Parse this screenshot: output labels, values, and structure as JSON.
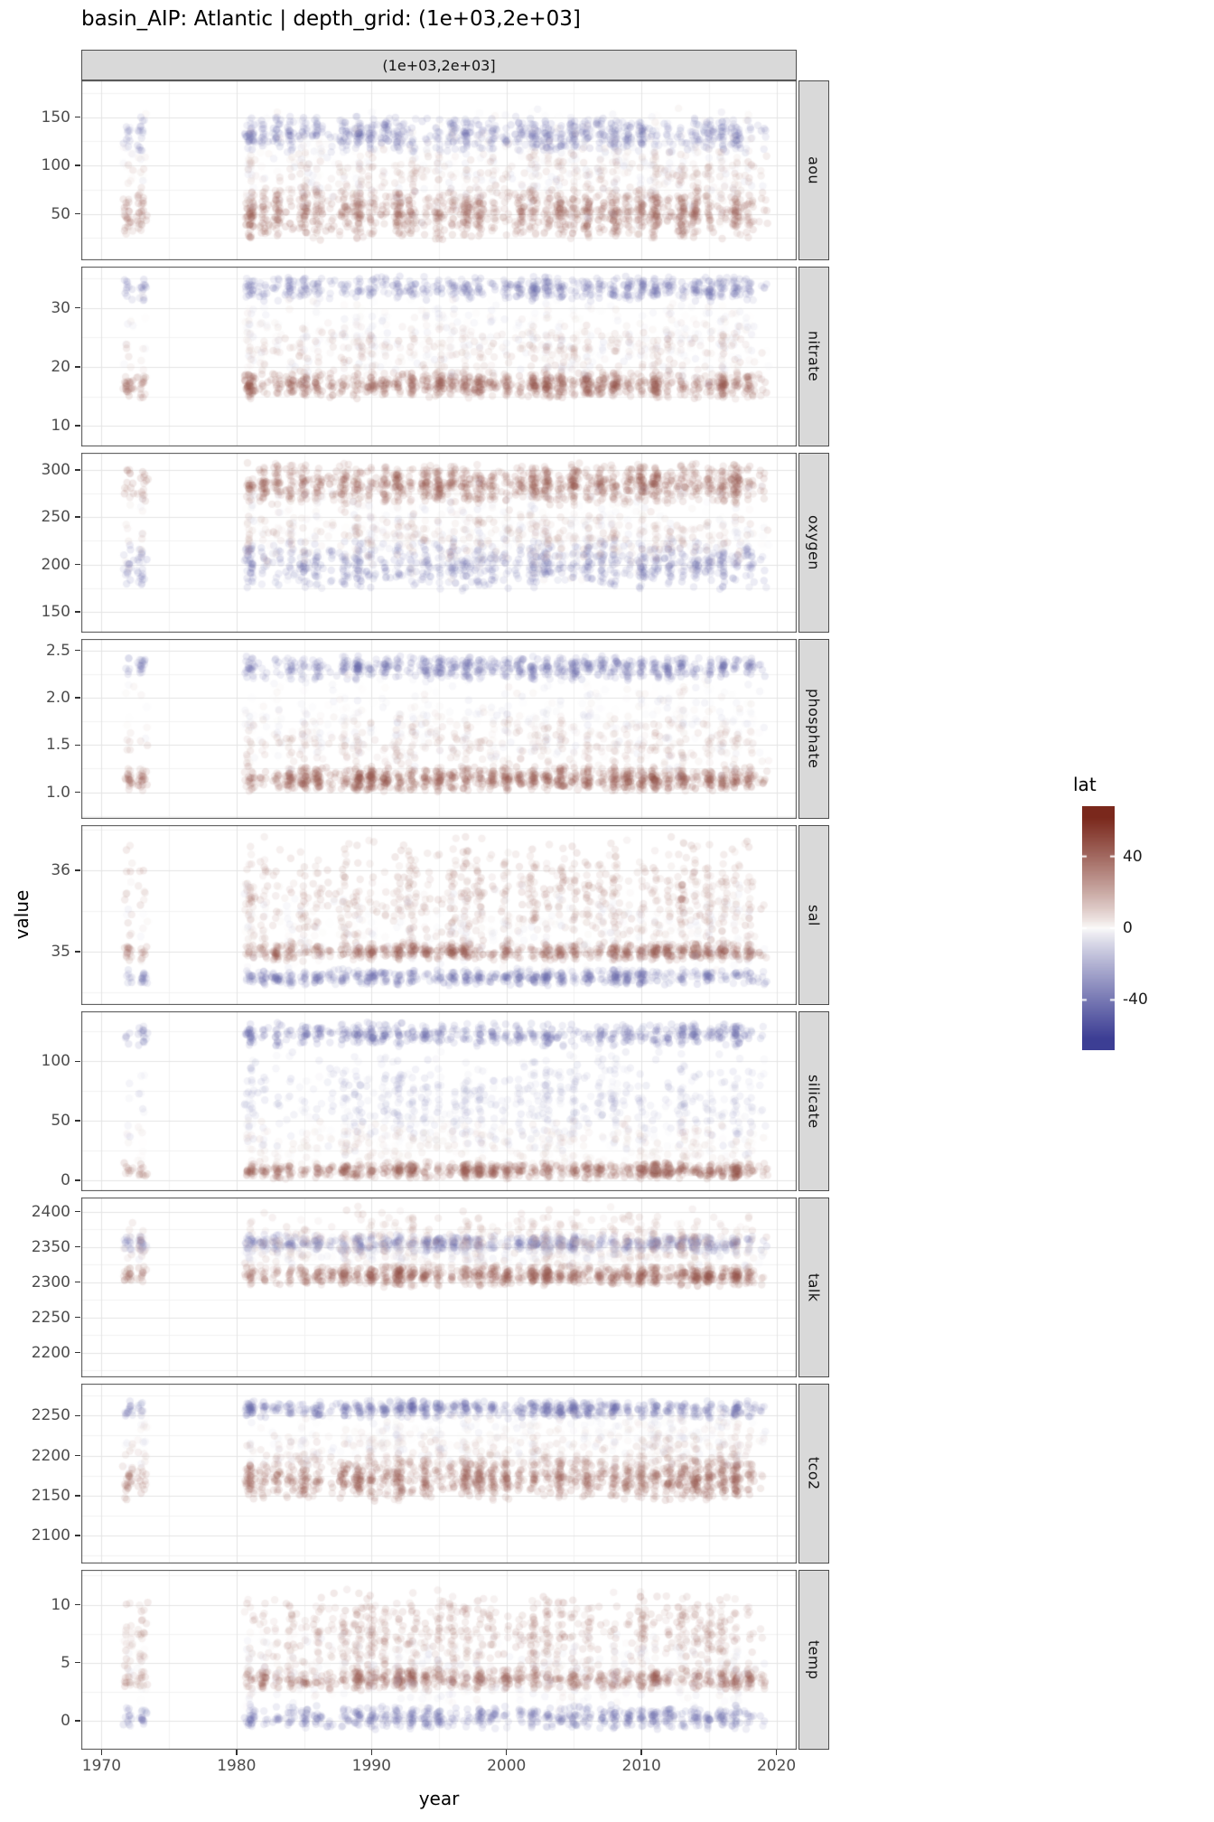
{
  "title": "basin_AIP: Atlantic | depth_grid: (1e+03,2e+03]",
  "facet_top_label": "(1e+03,2e+03]",
  "axis": {
    "x_label": "year",
    "y_label": "value",
    "x_ticks": [
      1970,
      1980,
      1990,
      2000,
      2010,
      2020
    ]
  },
  "legend": {
    "title": "lat",
    "ticks": [
      40,
      0,
      -40
    ],
    "range": [
      -68,
      68
    ],
    "color_high": "#7a281c",
    "color_mid": "#fcfbfa",
    "color_low": "#3c3e94"
  },
  "style": {
    "strip_bg": "#d9d9d9",
    "panel_border": "#4d4d4d",
    "grid_major": "#e4e4e4",
    "grid_minor": "#f2f2f2",
    "tick_color": "#333333",
    "label_color": "#4d4d4d"
  },
  "chart_data": {
    "type": "scatter",
    "x_range": [
      1968.5,
      2021.5
    ],
    "points_scale": 110,
    "alpha": 0.12,
    "point_radius": 4.2,
    "color_variable": "lat",
    "campaigns": [
      {
        "year": 1972,
        "w": 0.35
      },
      {
        "year": 1973,
        "w": 0.45
      },
      {
        "year": 1981,
        "w": 0.85
      },
      {
        "year": 1982,
        "w": 0.5
      },
      {
        "year": 1983,
        "w": 0.55
      },
      {
        "year": 1984,
        "w": 0.5
      },
      {
        "year": 1985,
        "w": 0.6
      },
      {
        "year": 1986,
        "w": 0.55
      },
      {
        "year": 1987,
        "w": 0.25
      },
      {
        "year": 1988,
        "w": 0.6
      },
      {
        "year": 1989,
        "w": 0.8
      },
      {
        "year": 1990,
        "w": 0.75
      },
      {
        "year": 1991,
        "w": 0.55
      },
      {
        "year": 1992,
        "w": 0.8
      },
      {
        "year": 1993,
        "w": 0.7
      },
      {
        "year": 1994,
        "w": 0.6
      },
      {
        "year": 1995,
        "w": 0.7
      },
      {
        "year": 1996,
        "w": 0.6
      },
      {
        "year": 1997,
        "w": 0.8
      },
      {
        "year": 1998,
        "w": 0.7
      },
      {
        "year": 1999,
        "w": 0.5
      },
      {
        "year": 2000,
        "w": 0.55
      },
      {
        "year": 2001,
        "w": 0.5
      },
      {
        "year": 2002,
        "w": 0.7
      },
      {
        "year": 2003,
        "w": 0.8
      },
      {
        "year": 2004,
        "w": 0.7
      },
      {
        "year": 2005,
        "w": 0.8
      },
      {
        "year": 2006,
        "w": 0.7
      },
      {
        "year": 2007,
        "w": 0.6
      },
      {
        "year": 2008,
        "w": 0.8
      },
      {
        "year": 2009,
        "w": 0.6
      },
      {
        "year": 2010,
        "w": 0.8
      },
      {
        "year": 2011,
        "w": 0.8
      },
      {
        "year": 2012,
        "w": 0.7
      },
      {
        "year": 2013,
        "w": 0.8
      },
      {
        "year": 2014,
        "w": 0.75
      },
      {
        "year": 2015,
        "w": 0.6
      },
      {
        "year": 2016,
        "w": 0.7
      },
      {
        "year": 2017,
        "w": 0.85
      },
      {
        "year": 2018,
        "w": 0.5
      },
      {
        "year": 2019,
        "w": 0.15
      }
    ],
    "facets": [
      {
        "name": "aou",
        "y_ticks": [
          50,
          100,
          150
        ],
        "y_tick_labels": [
          "50",
          "100",
          "150"
        ],
        "y_range": [
          2,
          188
        ],
        "bands": [
          {
            "lat": [
              35,
              55
            ],
            "y": [
              22,
              78
            ],
            "w": 0.42
          },
          {
            "lat": [
              -55,
              -35
            ],
            "y": [
              112,
              152
            ],
            "w": 0.27
          },
          {
            "lat": [
              -25,
              20
            ],
            "y": [
              35,
              165
            ],
            "w": 0.21
          },
          {
            "lat": [
              20,
              40
            ],
            "y": [
              60,
              120
            ],
            "w": 0.1
          }
        ]
      },
      {
        "name": "nitrate",
        "y_ticks": [
          10,
          20,
          30
        ],
        "y_tick_labels": [
          "10",
          "20",
          "30"
        ],
        "y_range": [
          6.5,
          37
        ],
        "bands": [
          {
            "lat": [
              35,
              55
            ],
            "y": [
              14.5,
              19.5
            ],
            "w": 0.42
          },
          {
            "lat": [
              -55,
              -35
            ],
            "y": [
              31,
              35.5
            ],
            "w": 0.27
          },
          {
            "lat": [
              -25,
              20
            ],
            "y": [
              16,
              33
            ],
            "w": 0.21
          },
          {
            "lat": [
              15,
              40
            ],
            "y": [
              18,
              28
            ],
            "w": 0.1
          }
        ]
      },
      {
        "name": "oxygen",
        "y_ticks": [
          150,
          200,
          250,
          300
        ],
        "y_tick_labels": [
          "150",
          "200",
          "250",
          "300"
        ],
        "y_range": [
          128,
          318
        ],
        "bands": [
          {
            "lat": [
              35,
              55
            ],
            "y": [
              262,
              308
            ],
            "w": 0.42
          },
          {
            "lat": [
              -55,
              -35
            ],
            "y": [
              172,
              228
            ],
            "w": 0.27
          },
          {
            "lat": [
              -25,
              20
            ],
            "y": [
              180,
              290
            ],
            "w": 0.21
          },
          {
            "lat": [
              15,
              40
            ],
            "y": [
              200,
              260
            ],
            "w": 0.1
          }
        ]
      },
      {
        "name": "phosphate",
        "y_ticks": [
          1.0,
          1.5,
          2.0,
          2.5
        ],
        "y_tick_labels": [
          "1.0",
          "1.5",
          "2.0",
          "2.5"
        ],
        "y_range": [
          0.72,
          2.62
        ],
        "bands": [
          {
            "lat": [
              35,
              55
            ],
            "y": [
              1.0,
              1.28
            ],
            "w": 0.42
          },
          {
            "lat": [
              -55,
              -35
            ],
            "y": [
              2.18,
              2.45
            ],
            "w": 0.27
          },
          {
            "lat": [
              -25,
              20
            ],
            "y": [
              1.15,
              2.3
            ],
            "w": 0.21
          },
          {
            "lat": [
              15,
              40
            ],
            "y": [
              1.2,
              1.8
            ],
            "w": 0.1
          }
        ]
      },
      {
        "name": "sal",
        "y_ticks": [
          35,
          36
        ],
        "y_tick_labels": [
          "35",
          "36"
        ],
        "y_range": [
          34.35,
          36.55
        ],
        "bands": [
          {
            "lat": [
              35,
              55
            ],
            "y": [
              34.88,
              35.12
            ],
            "w": 0.3
          },
          {
            "lat": [
              20,
              50
            ],
            "y": [
              34.95,
              36.45
            ],
            "w": 0.3
          },
          {
            "lat": [
              -55,
              -35
            ],
            "y": [
              34.58,
              34.8
            ],
            "w": 0.25
          },
          {
            "lat": [
              -20,
              15
            ],
            "y": [
              34.7,
              35.9
            ],
            "w": 0.15
          }
        ]
      },
      {
        "name": "silicate",
        "y_ticks": [
          0,
          50,
          100
        ],
        "y_tick_labels": [
          "0",
          "50",
          "100"
        ],
        "y_range": [
          -9,
          142
        ],
        "bands": [
          {
            "lat": [
              35,
              55
            ],
            "y": [
              1,
              16
            ],
            "w": 0.38
          },
          {
            "lat": [
              -55,
              -38
            ],
            "y": [
              112,
              133
            ],
            "w": 0.22
          },
          {
            "lat": [
              -38,
              -8
            ],
            "y": [
              20,
              112
            ],
            "w": 0.25
          },
          {
            "lat": [
              -5,
              25
            ],
            "y": [
              3,
              55
            ],
            "w": 0.15
          }
        ]
      },
      {
        "name": "talk",
        "y_ticks": [
          2200,
          2250,
          2300,
          2350,
          2400
        ],
        "y_tick_labels": [
          "2200",
          "2250",
          "2300",
          "2350",
          "2400"
        ],
        "y_range": [
          2165,
          2420
        ],
        "bands": [
          {
            "lat": [
              35,
              55
            ],
            "y": [
              2293,
              2325
            ],
            "w": 0.4
          },
          {
            "lat": [
              -55,
              -35
            ],
            "y": [
              2342,
              2368
            ],
            "w": 0.26
          },
          {
            "lat": [
              10,
              40
            ],
            "y": [
              2300,
              2408
            ],
            "w": 0.22
          },
          {
            "lat": [
              -25,
              5
            ],
            "y": [
              2320,
              2370
            ],
            "w": 0.12
          }
        ]
      },
      {
        "name": "tco2",
        "y_ticks": [
          2100,
          2150,
          2200,
          2250
        ],
        "y_tick_labels": [
          "2100",
          "2150",
          "2200",
          "2250"
        ],
        "y_range": [
          2065,
          2290
        ],
        "bands": [
          {
            "lat": [
              35,
              55
            ],
            "y": [
              2142,
              2200
            ],
            "w": 0.42
          },
          {
            "lat": [
              -55,
              -35
            ],
            "y": [
              2246,
              2270
            ],
            "w": 0.27
          },
          {
            "lat": [
              -20,
              20
            ],
            "y": [
              2180,
              2258
            ],
            "w": 0.21
          },
          {
            "lat": [
              15,
              40
            ],
            "y": [
              2160,
              2230
            ],
            "w": 0.1
          }
        ]
      },
      {
        "name": "temp",
        "y_ticks": [
          0,
          5,
          10
        ],
        "y_tick_labels": [
          "0",
          "5",
          "10"
        ],
        "y_range": [
          -2.5,
          13
        ],
        "bands": [
          {
            "lat": [
              35,
              55
            ],
            "y": [
              2.6,
              4.6
            ],
            "w": 0.34
          },
          {
            "lat": [
              22,
              50
            ],
            "y": [
              3.5,
              11.5
            ],
            "w": 0.28
          },
          {
            "lat": [
              -55,
              -35
            ],
            "y": [
              -0.8,
              1.4
            ],
            "w": 0.24
          },
          {
            "lat": [
              -20,
              15
            ],
            "y": [
              0.8,
              8
            ],
            "w": 0.14
          }
        ]
      }
    ]
  }
}
